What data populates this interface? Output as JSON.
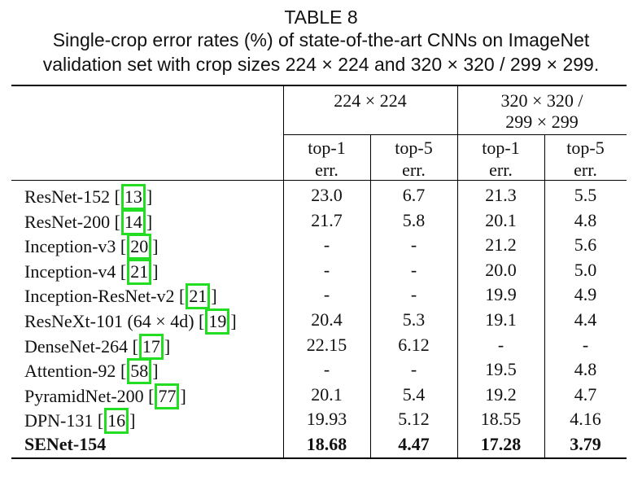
{
  "caption": {
    "label": "TABLE 8",
    "line1": "Single-crop error rates (%) of state-of-the-art CNNs on ImageNet",
    "line2": "validation set with crop sizes 224 × 224 and 320 × 320 / 299 × 299."
  },
  "header": {
    "group1": "224 × 224",
    "group2_line1": "320 × 320 /",
    "group2_line2": "299 × 299",
    "sub": [
      {
        "line1": "top-1",
        "line2": "err."
      },
      {
        "line1": "top-5",
        "line2": "err."
      },
      {
        "line1": "top-1",
        "line2": "err."
      },
      {
        "line1": "top-5",
        "line2": "err."
      }
    ]
  },
  "rows": [
    {
      "name": "ResNet-152 ",
      "ref": "13",
      "cells": [
        "23.0",
        "6.7",
        "21.3",
        "5.5"
      ]
    },
    {
      "name": "ResNet-200 ",
      "ref": "14",
      "cells": [
        "21.7",
        "5.8",
        "20.1",
        "4.8"
      ]
    },
    {
      "name": "Inception-v3 ",
      "ref": "20",
      "cells": [
        "-",
        "-",
        "21.2",
        "5.6"
      ]
    },
    {
      "name": "Inception-v4 ",
      "ref": "21",
      "cells": [
        "-",
        "-",
        "20.0",
        "5.0"
      ]
    },
    {
      "name": "Inception-ResNet-v2 ",
      "ref": "21",
      "cells": [
        "-",
        "-",
        "19.9",
        "4.9"
      ]
    },
    {
      "name": "ResNeXt-101 (64 × 4d) ",
      "ref": "19",
      "cells": [
        "20.4",
        "5.3",
        "19.1",
        "4.4"
      ]
    },
    {
      "name": "DenseNet-264 ",
      "ref": "17",
      "cells": [
        "22.15",
        "6.12",
        "-",
        "-"
      ]
    },
    {
      "name": "Attention-92 ",
      "ref": "58",
      "cells": [
        "-",
        "-",
        "19.5",
        "4.8"
      ]
    },
    {
      "name": "PyramidNet-200 ",
      "ref": "77",
      "cells": [
        "20.1",
        "5.4",
        "19.2",
        "4.7"
      ]
    },
    {
      "name": "DPN-131 ",
      "ref": "16",
      "cells": [
        "19.93",
        "5.12",
        "18.55",
        "4.16"
      ]
    },
    {
      "name": "SENet-154",
      "ref": "",
      "bold": true,
      "cells": [
        "18.68",
        "4.47",
        "17.28",
        "3.79"
      ]
    }
  ],
  "colors": {
    "ref_box": "#22dd22",
    "text": "#111111",
    "rule": "#000000"
  }
}
